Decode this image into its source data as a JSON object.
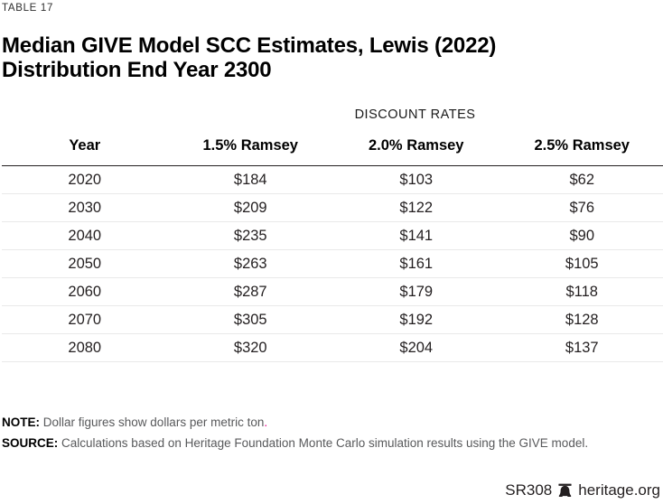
{
  "colors": {
    "accent": "#ec008c",
    "text": "#231f20",
    "muted_text": "#58595b",
    "rule_dark": "#231f20",
    "rule_light": "#e9e9e9"
  },
  "kicker": "TABLE 17",
  "title_lines": {
    "0": "Median GIVE Model SCC Estimates, Lewis (2022)",
    "1": "Distribution End Year 2300"
  },
  "table": {
    "group_header": "DISCOUNT RATES",
    "columns": [
      "Year",
      "1.5% Ramsey",
      "2.0% Ramsey",
      "2.5% Ramsey"
    ],
    "rows": [
      [
        "2020",
        "$184",
        "$103",
        "$62"
      ],
      [
        "2030",
        "$209",
        "$122",
        "$76"
      ],
      [
        "2040",
        "$235",
        "$141",
        "$90"
      ],
      [
        "2050",
        "$263",
        "$161",
        "$105"
      ],
      [
        "2060",
        "$287",
        "$179",
        "$118"
      ],
      [
        "2070",
        "$305",
        "$192",
        "$128"
      ],
      [
        "2080",
        "$320",
        "$204",
        "$137"
      ]
    ]
  },
  "note": {
    "label": "NOTE:",
    "text": " Dollar figures show dollars per metric ton",
    "period": "."
  },
  "source": {
    "label": "SOURCE:",
    "text": " Calculations based on Heritage Foundation Monte Carlo simulation results using the GIVE model."
  },
  "footer": {
    "report_id": "SR308",
    "logo": "liberty-bell-icon",
    "site": "heritage.org"
  }
}
